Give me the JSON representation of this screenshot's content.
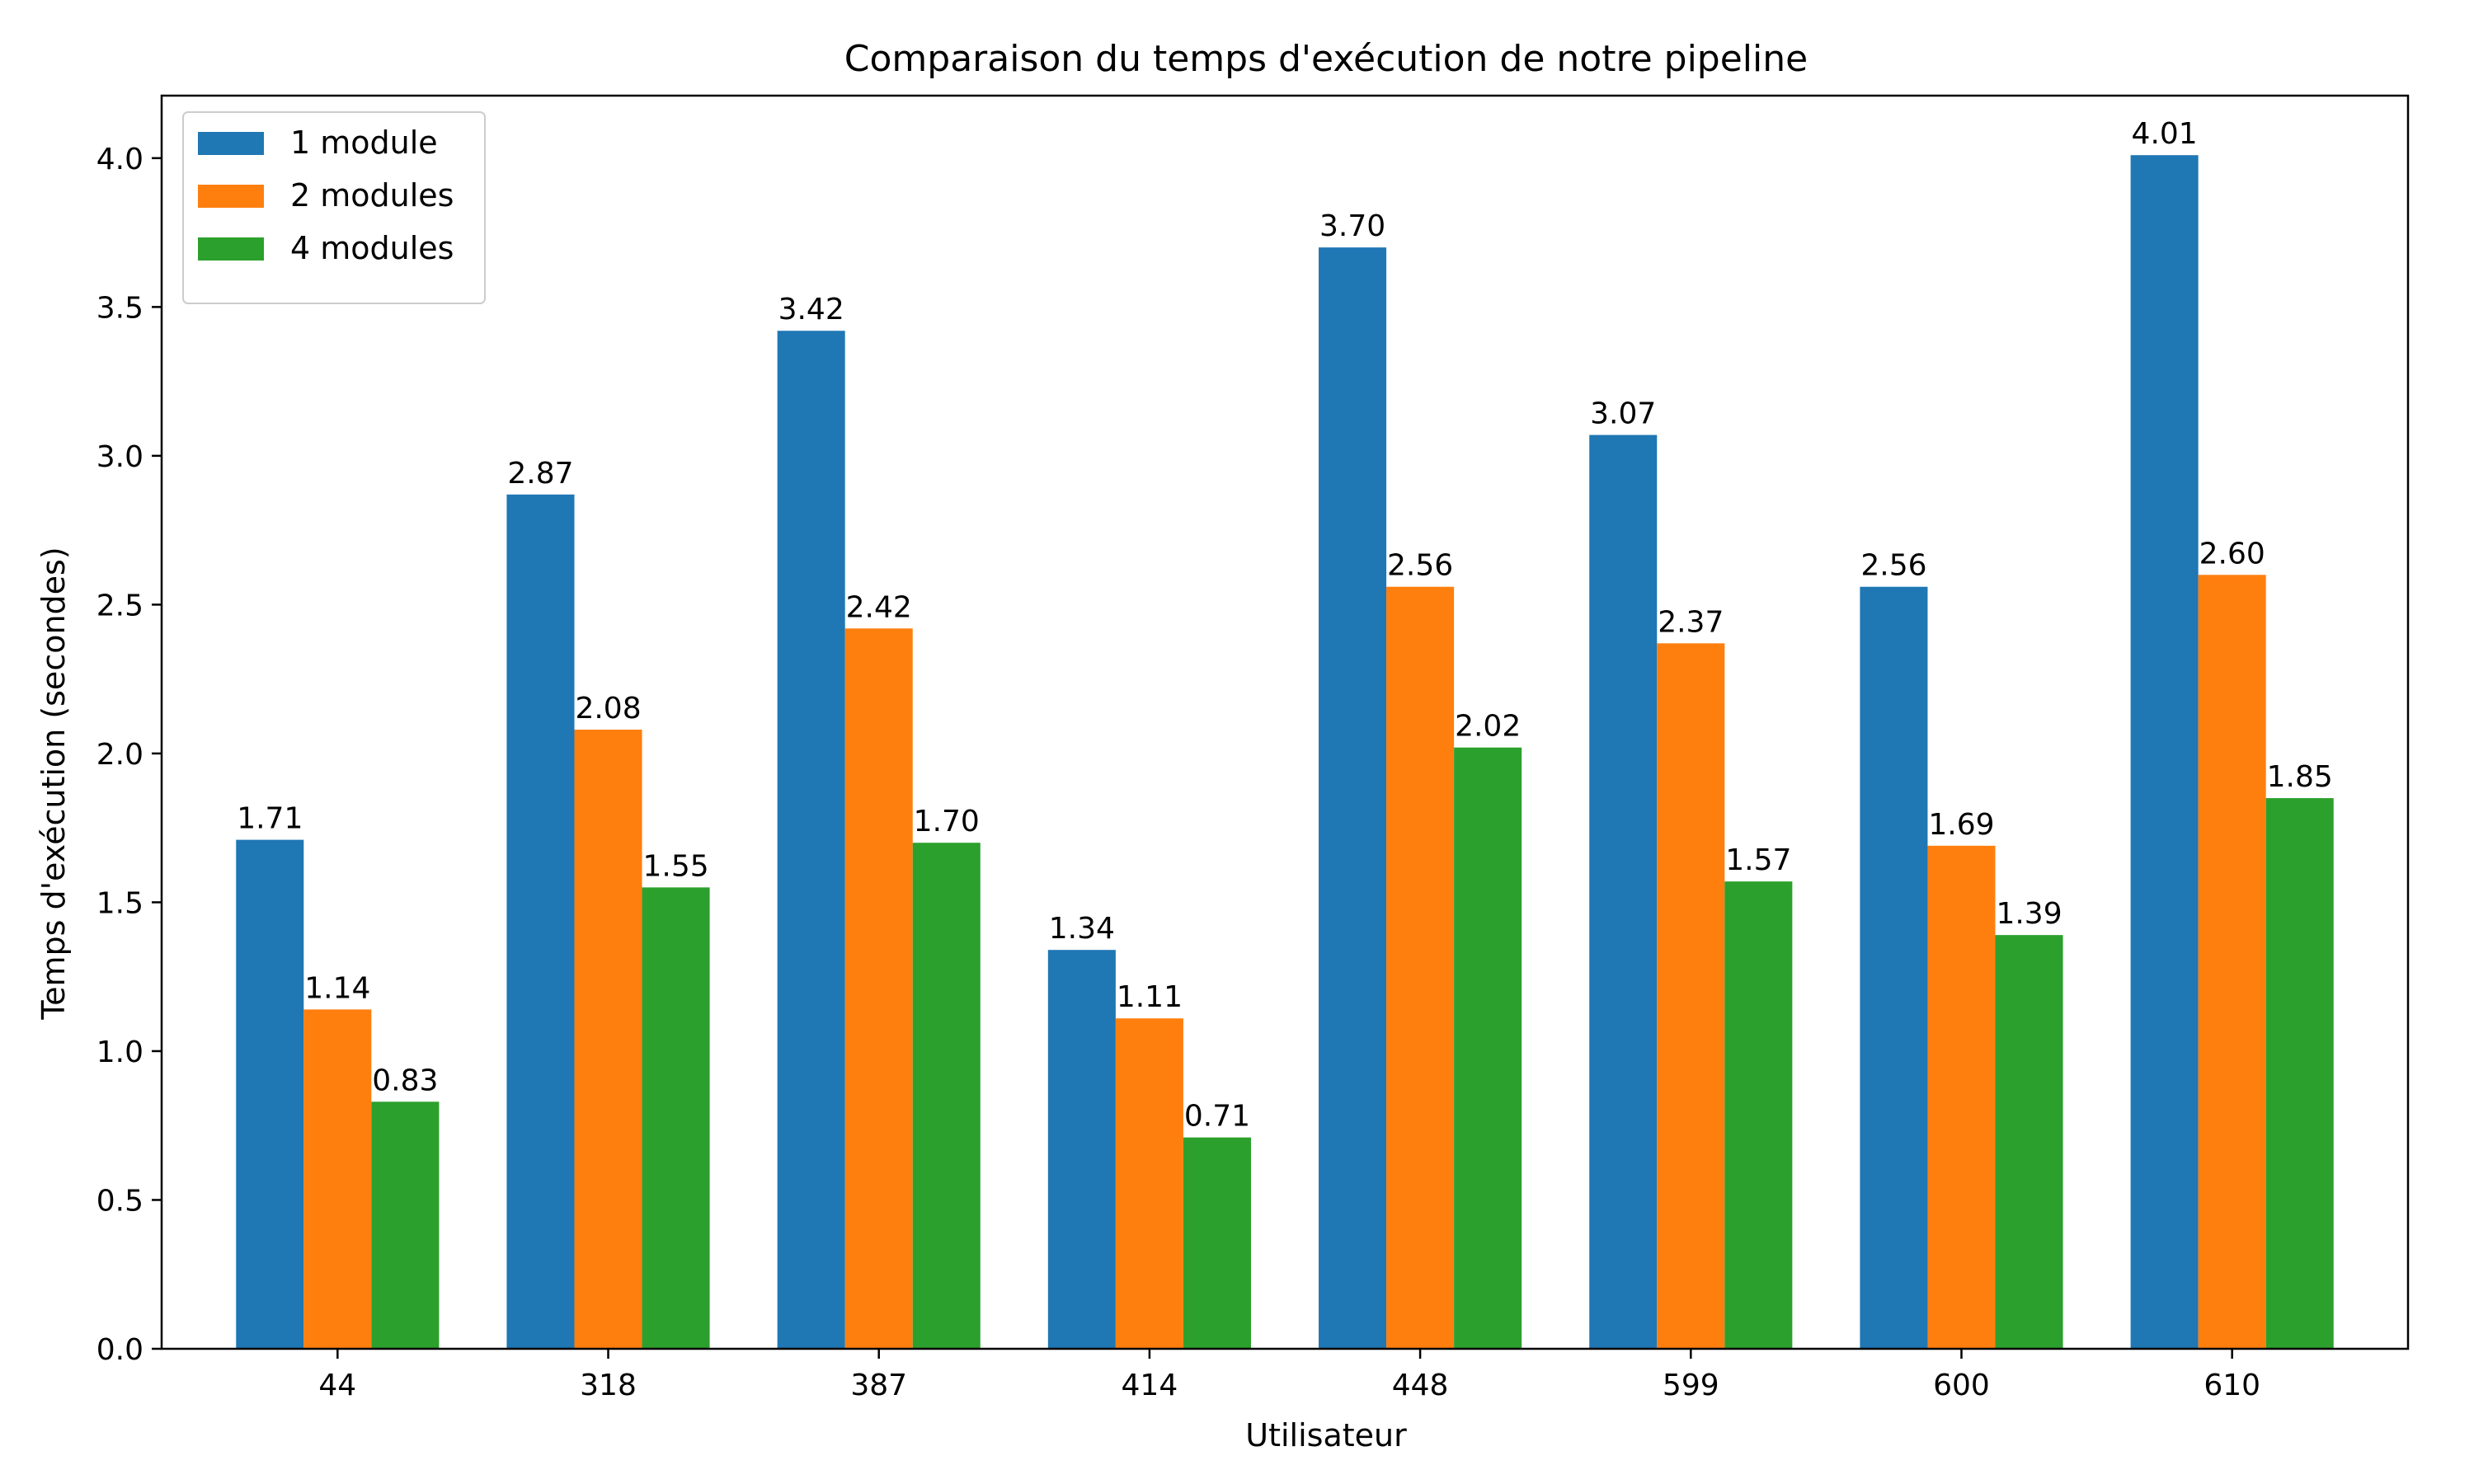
{
  "chart_data": {
    "type": "bar",
    "title": "Comparaison du temps d'exécution de notre pipeline",
    "xlabel": "Utilisateur",
    "ylabel": "Temps d'exécution (secondes)",
    "categories": [
      "44",
      "318",
      "387",
      "414",
      "448",
      "599",
      "600",
      "610"
    ],
    "series": [
      {
        "name": "1 module",
        "color": "#1f77b4",
        "values": [
          1.71,
          2.87,
          3.42,
          1.34,
          3.7,
          3.07,
          2.56,
          4.01
        ],
        "labels": [
          "1.71",
          "2.87",
          "3.42",
          "1.34",
          "3.70",
          "3.07",
          "2.56",
          "4.01"
        ]
      },
      {
        "name": "2 modules",
        "color": "#ff7f0e",
        "values": [
          1.14,
          2.08,
          2.42,
          1.11,
          2.56,
          2.37,
          1.69,
          2.6
        ],
        "labels": [
          "1.14",
          "2.08",
          "2.42",
          "1.11",
          "2.56",
          "2.37",
          "1.69",
          "2.60"
        ]
      },
      {
        "name": "4 modules",
        "color": "#2ca02c",
        "values": [
          0.83,
          1.55,
          1.7,
          0.71,
          2.02,
          1.57,
          1.39,
          1.85
        ],
        "labels": [
          "0.83",
          "1.55",
          "1.70",
          "0.71",
          "2.02",
          "1.57",
          "1.39",
          "1.85"
        ]
      }
    ],
    "ylim": [
      0,
      4.21
    ],
    "yticks": [
      "0.0",
      "0.5",
      "1.0",
      "1.5",
      "2.0",
      "2.5",
      "3.0",
      "3.5",
      "4.0"
    ],
    "legend": "top-left",
    "grid": false
  }
}
